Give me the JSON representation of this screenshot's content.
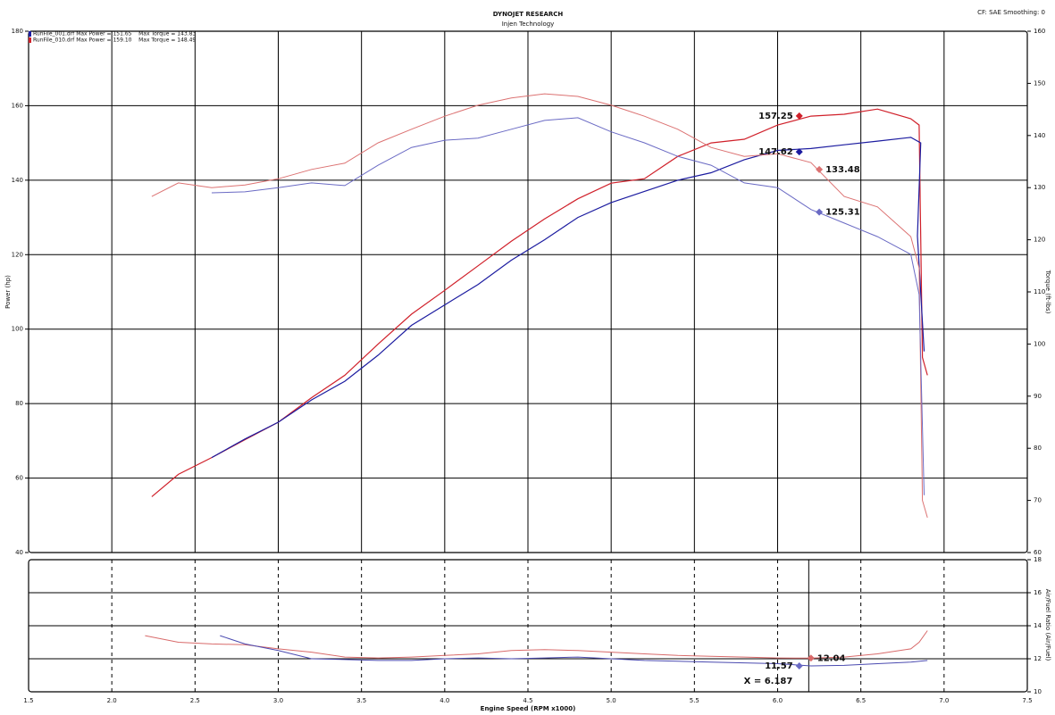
{
  "chart_data": [
    {
      "type": "line",
      "title": "DYNOJET RESEARCH",
      "subtitle": "Injen Technology",
      "note": "CF: SAE  Smoothing: 0",
      "y_label": "Power (hp)",
      "y2_label": "Torque (ft-lbs)",
      "legend": [
        {
          "text": "RunFile_001.drf Max Power = 151.65    Max Torque = 143.83",
          "color": "#1c1ca0"
        },
        {
          "text": "RunFile_010.drf Max Power = 159.10    Max Torque = 148.49",
          "color": "#d0202a"
        }
      ],
      "xlim": [
        1.5,
        7.5
      ],
      "xticks": [
        1.5,
        2,
        2.5,
        3,
        3.5,
        4,
        4.5,
        5,
        5.5,
        6,
        6.5,
        7,
        7.5
      ],
      "ylim": [
        40,
        180
      ],
      "yticks": [
        40,
        60,
        80,
        100,
        120,
        140,
        160,
        180
      ],
      "y2lim": [
        60,
        160
      ],
      "y2ticks": [
        60,
        70,
        80,
        90,
        100,
        110,
        120,
        130,
        140,
        150,
        160
      ],
      "grid": true,
      "grid_style": "solid",
      "series": [
        {
          "color": "#d0202a",
          "axis": "y",
          "x": [
            2.24,
            2.4,
            2.6,
            2.8,
            3.0,
            3.2,
            3.4,
            3.6,
            3.8,
            4.0,
            4.2,
            4.4,
            4.6,
            4.8,
            5.0,
            5.2,
            5.4,
            5.6,
            5.8,
            6.0,
            6.2,
            6.4,
            6.6,
            6.8,
            6.85,
            6.87,
            6.9
          ],
          "values": [
            55,
            61,
            65.5,
            70.3,
            75,
            81.6,
            87.6,
            96,
            104,
            110.4,
            117,
            123.6,
            129.6,
            135,
            139.2,
            140.4,
            146.4,
            150,
            151,
            154.8,
            157.2,
            157.7,
            159.1,
            156.5,
            154.8,
            92.4,
            87.6
          ]
        },
        {
          "color": "#1c1ca0",
          "axis": "y",
          "x": [
            2.6,
            2.8,
            3.0,
            3.2,
            3.4,
            3.6,
            3.8,
            4.0,
            4.2,
            4.4,
            4.6,
            4.8,
            5.0,
            5.2,
            5.4,
            5.6,
            5.8,
            6.0,
            6.2,
            6.4,
            6.6,
            6.8,
            6.86,
            6.84,
            6.88
          ],
          "values": [
            65.5,
            70.5,
            75,
            81,
            86,
            93,
            101,
            106.5,
            112,
            118.5,
            124,
            130,
            134,
            137,
            140,
            142,
            145.5,
            148,
            148.5,
            149.5,
            150.5,
            151.5,
            150,
            125,
            94
          ]
        },
        {
          "color": "#dc7272",
          "axis": "y2",
          "x": [
            2.24,
            2.4,
            2.6,
            2.8,
            3.0,
            3.2,
            3.4,
            3.6,
            3.8,
            4.0,
            4.2,
            4.4,
            4.6,
            4.8,
            5.0,
            5.2,
            5.4,
            5.6,
            5.8,
            6.0,
            6.2,
            6.4,
            6.6,
            6.8,
            6.85,
            6.87,
            6.9
          ],
          "values": [
            128.3,
            130.9,
            130,
            130.5,
            131.7,
            133.5,
            134.7,
            138.6,
            141.2,
            143.7,
            145.8,
            147.2,
            148,
            147.5,
            145.8,
            143.7,
            141.2,
            137.7,
            136,
            136.5,
            134.8,
            128.3,
            126.3,
            120.6,
            114.6,
            70,
            66.7
          ]
        },
        {
          "color": "#6a6ac4",
          "axis": "y2",
          "x": [
            2.6,
            2.8,
            3.0,
            3.2,
            3.4,
            3.6,
            3.8,
            4.0,
            4.2,
            4.4,
            4.6,
            4.8,
            5.0,
            5.2,
            5.4,
            5.6,
            5.8,
            6.0,
            6.2,
            6.4,
            6.6,
            6.8,
            6.85,
            6.88
          ],
          "values": [
            129,
            129.2,
            130,
            130.9,
            130.4,
            134.3,
            137.7,
            139.1,
            139.5,
            141.2,
            142.9,
            143.4,
            140.7,
            138.6,
            136,
            134.3,
            130.9,
            130,
            125.8,
            123.2,
            120.6,
            117.2,
            109.5,
            71
          ]
        }
      ],
      "annotations": [
        {
          "x": 6.13,
          "value": 157.25,
          "color": "#d0202a",
          "axis": "y"
        },
        {
          "x": 6.13,
          "value": 147.62,
          "color": "#1c1ca0",
          "axis": "y"
        },
        {
          "x": 6.25,
          "value": 133.48,
          "color": "#dc7272",
          "axis": "y2"
        },
        {
          "x": 6.25,
          "value": 125.31,
          "color": "#6a6ac4",
          "axis": "y2"
        }
      ]
    },
    {
      "type": "line",
      "x_label": "Engine Speed (RPM x1000)",
      "y2_label": "Air/Fuel Ratio (Air/Fuel)",
      "xlim": [
        1.5,
        7.5
      ],
      "xticks": [
        1.5,
        {
          "value": 2,
          "label": "2.0"
        },
        2.5,
        {
          "value": 3,
          "label": "3.0"
        },
        3.5,
        {
          "value": 4,
          "label": "4.0"
        },
        4.5,
        {
          "value": 5,
          "label": "5.0"
        },
        5.5,
        {
          "value": 6,
          "label": "6.0"
        },
        6.5,
        {
          "value": 7,
          "label": "7.0"
        },
        7.5
      ],
      "y2lim": [
        10,
        18
      ],
      "y2ticks": [
        10,
        12,
        14,
        16,
        18
      ],
      "grid": true,
      "grid_style": "dashed",
      "cursor": {
        "value": 6.187,
        "label": "X = 6.187"
      },
      "series": [
        {
          "color": "#d86a6a",
          "axis": "y2",
          "x": [
            2.2,
            2.4,
            2.6,
            2.8,
            3.0,
            3.2,
            3.4,
            3.6,
            3.8,
            4.0,
            4.2,
            4.4,
            4.6,
            4.8,
            5.0,
            5.2,
            5.4,
            5.6,
            5.8,
            6.0,
            6.2,
            6.4,
            6.6,
            6.8,
            6.85,
            6.9
          ],
          "values": [
            13.4,
            13.0,
            12.9,
            12.85,
            12.6,
            12.4,
            12.1,
            12.05,
            12.1,
            12.2,
            12.3,
            12.5,
            12.55,
            12.5,
            12.4,
            12.3,
            12.2,
            12.15,
            12.1,
            12.05,
            12.04,
            12.1,
            12.3,
            12.6,
            13.0,
            13.7
          ]
        },
        {
          "color": "#4a4ab0",
          "axis": "y2",
          "x": [
            2.65,
            2.8,
            3.0,
            3.2,
            3.4,
            3.6,
            3.8,
            4.0,
            4.2,
            4.4,
            4.6,
            4.8,
            5.0,
            5.2,
            5.4,
            5.6,
            5.8,
            6.0,
            6.2,
            6.4,
            6.6,
            6.8,
            6.9
          ],
          "values": [
            13.4,
            12.9,
            12.5,
            12.0,
            11.95,
            11.9,
            11.9,
            12.0,
            12.05,
            12.0,
            12.05,
            12.1,
            12.0,
            11.9,
            11.85,
            11.8,
            11.75,
            11.7,
            11.57,
            11.6,
            11.7,
            11.8,
            11.9
          ]
        }
      ],
      "annotations": [
        {
          "x": 6.2,
          "value": 12.04,
          "color": "#d86a6a",
          "axis": "y2"
        },
        {
          "x": 6.13,
          "value": 11.57,
          "color": "#6a6ac4",
          "axis": "y2"
        }
      ]
    }
  ]
}
